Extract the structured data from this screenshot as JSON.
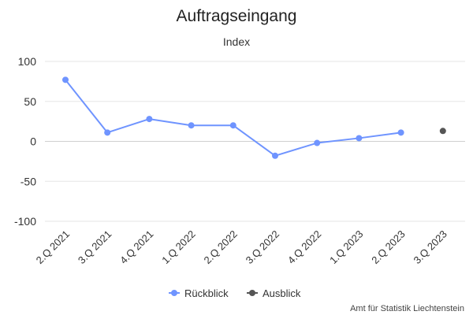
{
  "chart_data": {
    "type": "line",
    "title": "Auftragseingang",
    "subtitle": "Index",
    "xlabel": "",
    "ylabel": "",
    "categories": [
      "2.Q 2021",
      "3.Q 2021",
      "4.Q 2021",
      "1.Q 2022",
      "2.Q 2022",
      "3.Q 2022",
      "4.Q 2022",
      "1.Q 2023",
      "2.Q 2023",
      "3.Q 2023"
    ],
    "yticks": [
      100,
      50,
      0,
      -50,
      -100
    ],
    "ylim": [
      -100,
      100
    ],
    "grid": true,
    "legend_position": "bottom-center",
    "series": [
      {
        "name": "Rückblick",
        "color": "#6f94ff",
        "values": [
          77,
          11,
          28,
          20,
          20,
          -18,
          -2,
          4,
          11,
          null
        ]
      },
      {
        "name": "Ausblick",
        "color": "#555555",
        "values": [
          null,
          null,
          null,
          null,
          null,
          null,
          null,
          null,
          null,
          13
        ]
      }
    ],
    "source": "Amt für Statistik Liechtenstein"
  }
}
